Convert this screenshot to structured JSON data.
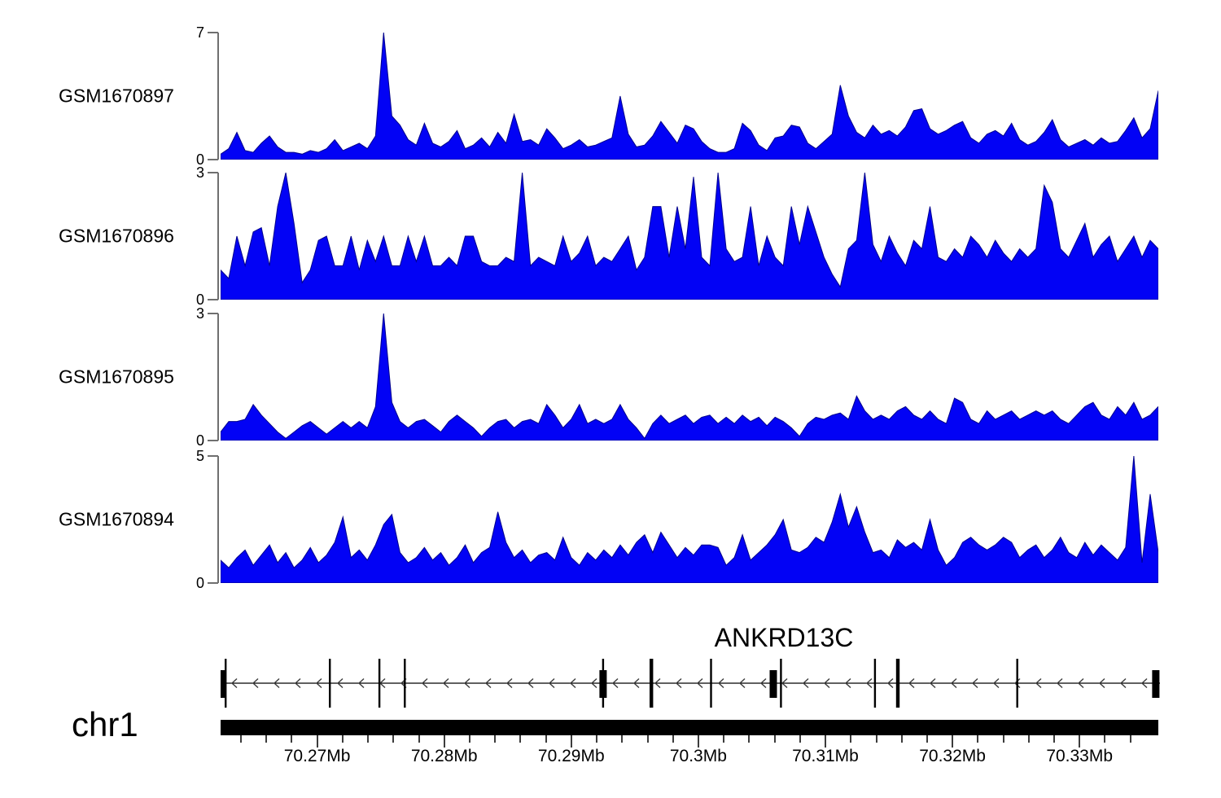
{
  "style": {
    "background": "#ffffff",
    "signal_fill": "#0202f5",
    "signal_stroke": "#00008b",
    "annotation_color": "#000000"
  },
  "chart_data": {
    "type": "area",
    "description": "Genome browser coverage tracks (4 samples) over chr1 70.26-70.34 Mb with ANKRD13C gene model and chromosome axis",
    "x_sampling": {
      "start_mb": 70.2624,
      "end_mb": 70.3362,
      "points": 116,
      "spacing": "uniform"
    },
    "tracks": [
      {
        "label": "GSM1670897",
        "ymin": 0,
        "ymax": 7,
        "ymax_label": "7",
        "ymin_label": "0",
        "values": [
          0.3,
          0.6,
          1.5,
          0.5,
          0.4,
          0.9,
          1.3,
          0.7,
          0.4,
          0.4,
          0.3,
          0.5,
          0.4,
          0.6,
          1.1,
          0.5,
          0.7,
          0.9,
          0.6,
          1.3,
          7.0,
          2.4,
          1.9,
          1.1,
          0.8,
          2.0,
          0.9,
          0.7,
          1.0,
          1.6,
          0.6,
          0.8,
          1.2,
          0.7,
          1.5,
          0.9,
          2.5,
          1.0,
          1.1,
          0.8,
          1.7,
          1.2,
          0.6,
          0.8,
          1.1,
          0.7,
          0.8,
          1.0,
          1.2,
          3.5,
          1.4,
          0.7,
          0.8,
          1.3,
          2.1,
          1.5,
          0.9,
          1.9,
          1.7,
          1.0,
          0.6,
          0.4,
          0.4,
          0.6,
          2.0,
          1.6,
          0.8,
          0.5,
          1.2,
          1.3,
          1.9,
          1.8,
          0.9,
          0.6,
          1.0,
          1.4,
          4.1,
          2.4,
          1.5,
          1.2,
          1.9,
          1.4,
          1.6,
          1.3,
          1.8,
          2.7,
          2.8,
          1.7,
          1.4,
          1.6,
          1.9,
          2.1,
          1.2,
          0.9,
          1.4,
          1.6,
          1.3,
          2.0,
          1.1,
          0.8,
          1.0,
          1.5,
          2.2,
          1.1,
          0.7,
          0.9,
          1.1,
          0.8,
          1.2,
          0.9,
          1.0,
          1.6,
          2.3,
          1.2,
          1.7,
          3.8
        ]
      },
      {
        "label": "GSM1670896",
        "ymin": 0,
        "ymax": 3,
        "ymax_label": "3",
        "ymin_label": "0",
        "values": [
          0.7,
          0.5,
          1.5,
          0.8,
          1.6,
          1.7,
          0.8,
          2.2,
          3.0,
          1.8,
          0.4,
          0.7,
          1.4,
          1.5,
          0.8,
          0.8,
          1.5,
          0.7,
          1.4,
          0.9,
          1.5,
          0.8,
          0.8,
          1.5,
          0.9,
          1.5,
          0.8,
          0.8,
          1.0,
          0.8,
          1.5,
          1.5,
          0.9,
          0.8,
          0.8,
          1.0,
          0.9,
          3.0,
          0.8,
          1.0,
          0.9,
          0.8,
          1.5,
          0.9,
          1.1,
          1.5,
          0.8,
          1.0,
          0.9,
          1.2,
          1.5,
          0.7,
          1.0,
          2.2,
          2.2,
          1.0,
          2.2,
          1.2,
          2.9,
          1.0,
          0.8,
          3.0,
          1.2,
          0.9,
          1.0,
          2.2,
          0.8,
          1.5,
          1.0,
          0.8,
          2.2,
          1.3,
          2.2,
          1.6,
          1.0,
          0.6,
          0.3,
          1.2,
          1.4,
          3.0,
          1.3,
          0.9,
          1.5,
          1.1,
          0.8,
          1.4,
          1.2,
          2.2,
          1.0,
          0.9,
          1.2,
          1.0,
          1.5,
          1.3,
          1.0,
          1.4,
          1.1,
          0.9,
          1.2,
          1.0,
          1.2,
          2.7,
          2.3,
          1.2,
          1.0,
          1.4,
          1.8,
          1.0,
          1.3,
          1.5,
          0.9,
          1.2,
          1.5,
          1.0,
          1.4,
          1.2
        ]
      },
      {
        "label": "GSM1670895",
        "ymin": 0,
        "ymax": 3,
        "ymax_label": "3",
        "ymin_label": "0",
        "values": [
          0.2,
          0.45,
          0.45,
          0.5,
          0.85,
          0.6,
          0.4,
          0.2,
          0.05,
          0.2,
          0.35,
          0.45,
          0.3,
          0.15,
          0.3,
          0.45,
          0.3,
          0.45,
          0.3,
          0.8,
          3.0,
          0.9,
          0.45,
          0.3,
          0.45,
          0.5,
          0.35,
          0.2,
          0.45,
          0.6,
          0.45,
          0.3,
          0.1,
          0.3,
          0.45,
          0.5,
          0.3,
          0.45,
          0.5,
          0.4,
          0.85,
          0.6,
          0.3,
          0.5,
          0.85,
          0.4,
          0.5,
          0.4,
          0.5,
          0.85,
          0.5,
          0.3,
          0.05,
          0.4,
          0.6,
          0.4,
          0.5,
          0.6,
          0.4,
          0.55,
          0.6,
          0.4,
          0.55,
          0.4,
          0.6,
          0.45,
          0.55,
          0.35,
          0.55,
          0.45,
          0.3,
          0.1,
          0.4,
          0.55,
          0.5,
          0.6,
          0.65,
          0.5,
          1.05,
          0.7,
          0.5,
          0.6,
          0.5,
          0.7,
          0.8,
          0.6,
          0.5,
          0.7,
          0.5,
          0.4,
          1.0,
          0.9,
          0.5,
          0.4,
          0.7,
          0.5,
          0.6,
          0.7,
          0.5,
          0.6,
          0.7,
          0.6,
          0.7,
          0.5,
          0.4,
          0.6,
          0.8,
          0.9,
          0.6,
          0.5,
          0.8,
          0.6,
          0.9,
          0.5,
          0.6,
          0.8
        ]
      },
      {
        "label": "GSM1670894",
        "ymin": 0,
        "ymax": 5,
        "ymax_label": "5",
        "ymin_label": "0",
        "values": [
          0.9,
          0.6,
          1.0,
          1.3,
          0.7,
          1.1,
          1.5,
          0.8,
          1.2,
          0.6,
          0.9,
          1.4,
          0.8,
          1.1,
          1.6,
          2.6,
          1.0,
          1.3,
          0.9,
          1.5,
          2.3,
          2.7,
          1.2,
          0.8,
          1.0,
          1.4,
          0.9,
          1.2,
          0.7,
          1.0,
          1.5,
          0.8,
          1.2,
          1.4,
          2.8,
          1.6,
          1.0,
          1.3,
          0.8,
          1.1,
          1.2,
          0.9,
          1.8,
          1.0,
          0.7,
          1.2,
          0.9,
          1.3,
          1.0,
          1.5,
          1.1,
          1.6,
          1.9,
          1.2,
          2.0,
          1.5,
          1.0,
          1.4,
          1.1,
          1.5,
          1.5,
          1.4,
          0.7,
          1.0,
          1.9,
          0.9,
          1.2,
          1.5,
          1.9,
          2.5,
          1.3,
          1.2,
          1.4,
          1.8,
          1.6,
          2.4,
          3.5,
          2.2,
          3.0,
          2.0,
          1.2,
          1.3,
          1.0,
          1.7,
          1.4,
          1.6,
          1.3,
          2.5,
          1.3,
          0.7,
          1.0,
          1.6,
          1.8,
          1.5,
          1.3,
          1.5,
          1.8,
          1.6,
          1.0,
          1.3,
          1.5,
          1.0,
          1.3,
          1.8,
          1.2,
          1.0,
          1.6,
          1.1,
          1.5,
          1.2,
          0.9,
          1.4,
          5.0,
          0.8,
          3.5,
          1.2
        ]
      }
    ],
    "gene_track": {
      "gene_name": "ANKRD13C",
      "strand_direction": "left",
      "exons": [
        {
          "mb": 70.2625,
          "type": "box"
        },
        {
          "mb": 70.2628,
          "type": "line"
        },
        {
          "mb": 70.271,
          "type": "line"
        },
        {
          "mb": 70.2749,
          "type": "line"
        },
        {
          "mb": 70.2769,
          "type": "line"
        },
        {
          "mb": 70.2925,
          "type": "box"
        },
        {
          "mb": 70.2925,
          "type": "line"
        },
        {
          "mb": 70.2963,
          "type": "thick-line"
        },
        {
          "mb": 70.301,
          "type": "line"
        },
        {
          "mb": 70.3059,
          "type": "box"
        },
        {
          "mb": 70.3065,
          "type": "line"
        },
        {
          "mb": 70.3139,
          "type": "line"
        },
        {
          "mb": 70.3157,
          "type": "thick-line"
        },
        {
          "mb": 70.3251,
          "type": "line"
        },
        {
          "mb": 70.336,
          "type": "box"
        }
      ]
    },
    "xaxis": {
      "chromosome_label": "chr1",
      "start_mb": 70.2624,
      "end_mb": 70.3362,
      "minor_tick_interval_mb": 0.002,
      "major_ticks": [
        {
          "mb": 70.27,
          "label": "70.27Mb"
        },
        {
          "mb": 70.28,
          "label": "70.28Mb"
        },
        {
          "mb": 70.29,
          "label": "70.29Mb"
        },
        {
          "mb": 70.3,
          "label": "70.3Mb"
        },
        {
          "mb": 70.31,
          "label": "70.31Mb"
        },
        {
          "mb": 70.32,
          "label": "70.32Mb"
        },
        {
          "mb": 70.33,
          "label": "70.33Mb"
        }
      ]
    }
  }
}
